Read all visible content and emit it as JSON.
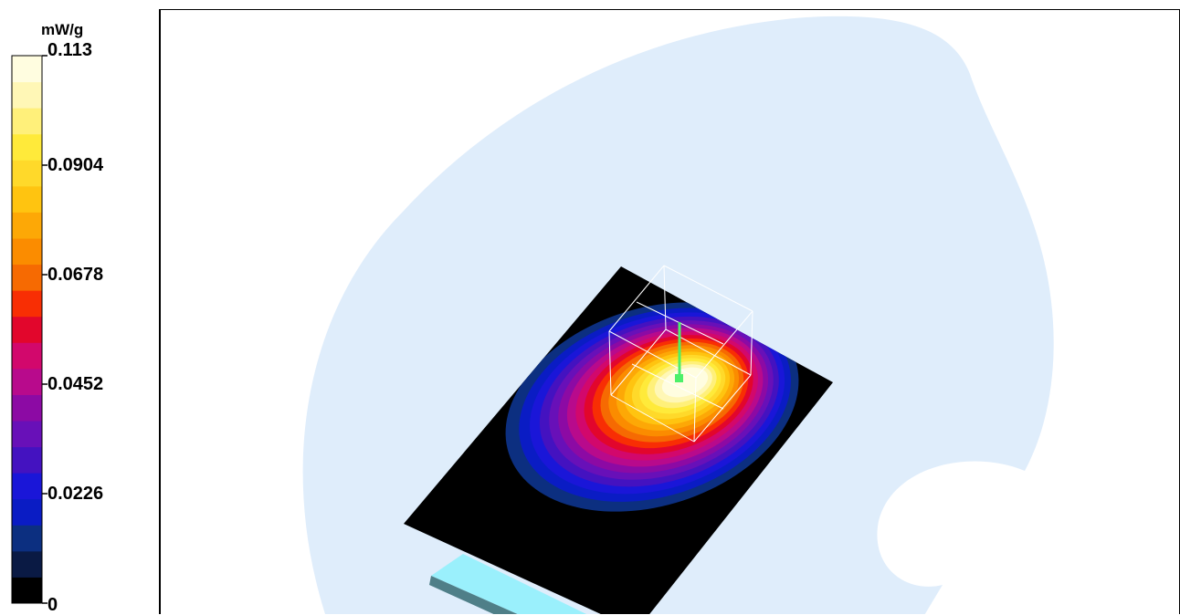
{
  "chart_data": {
    "type": "heatmap",
    "title": "",
    "unit": "mW/g",
    "colorbar": {
      "min": 0,
      "max": 0.113,
      "tick_labels": [
        "0.113",
        "0.0904",
        "0.0678",
        "0.0452",
        "0.0226",
        "0"
      ],
      "colors": [
        "#000000",
        "#0a1a44",
        "#0c2f80",
        "#0a1cc4",
        "#1a16d8",
        "#4412c0",
        "#6810b8",
        "#8c0aa4",
        "#b80a8c",
        "#d2086c",
        "#e2062c",
        "#f82e04",
        "#f66a02",
        "#fb8c00",
        "#fda806",
        "#ffc410",
        "#ffd92a",
        "#ffea3a",
        "#fff07a",
        "#fff7b6",
        "#fffde0"
      ]
    },
    "scene": {
      "phantom_color": "#dfedfb",
      "plate_color": "#000000",
      "device_color": "#9af0fc",
      "probe_color": "#4cf06a",
      "cube_color": "#ffffff"
    }
  },
  "colorbar_unit": "mW/g"
}
